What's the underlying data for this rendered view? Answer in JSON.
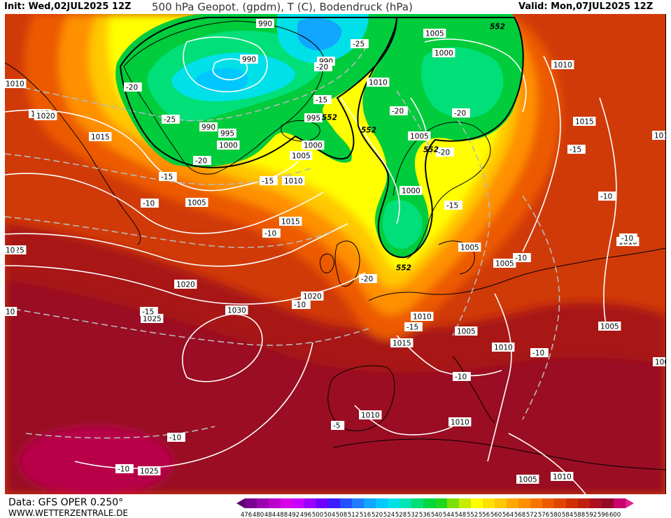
{
  "header": {
    "init_label": "Init: Wed,02JUL2025 12Z",
    "title": "500 hPa Geopot. (gpdm), T (C), Bodendruck (hPa)",
    "valid_label": "Valid: Mon,07JUL2025 12Z"
  },
  "footer": {
    "data_source": "Data: GFS OPER 0.250°",
    "website": "WWW.WETTERZENTRALE.DE"
  },
  "legend": {
    "ticks": [
      "476",
      "480",
      "484",
      "488",
      "492",
      "496",
      "500",
      "504",
      "508",
      "512",
      "516",
      "520",
      "524",
      "528",
      "532",
      "536",
      "540",
      "544",
      "548",
      "552",
      "556",
      "560",
      "564",
      "568",
      "572",
      "576",
      "580",
      "584",
      "588",
      "592",
      "596",
      "600"
    ],
    "colors": [
      "#5a006e",
      "#7a0090",
      "#9b00b0",
      "#bb00cc",
      "#d800e6",
      "#c800ff",
      "#9a00ff",
      "#6e00ff",
      "#3c1cff",
      "#2550ff",
      "#1f7cff",
      "#11a6ff",
      "#00c8ff",
      "#00e0e8",
      "#00e6b4",
      "#00df78",
      "#00d840",
      "#22d61e",
      "#7ee000",
      "#c8ec00",
      "#ffff00",
      "#ffe000",
      "#ffc800",
      "#ffa800",
      "#ff9000",
      "#f87400",
      "#ec5a00",
      "#e04600",
      "#d03000",
      "#c02010",
      "#aa1020",
      "#960828",
      "#c8006e",
      "#e0208c"
    ]
  },
  "map": {
    "isobar_labels": [
      {
        "text": "990"
      },
      {
        "text": "990"
      },
      {
        "text": "990"
      },
      {
        "text": "990"
      },
      {
        "text": "995"
      },
      {
        "text": "995"
      },
      {
        "text": "1000"
      },
      {
        "text": "1000"
      },
      {
        "text": "1000"
      },
      {
        "text": "1000"
      },
      {
        "text": "1005"
      },
      {
        "text": "1005"
      },
      {
        "text": "1005"
      },
      {
        "text": "1005"
      },
      {
        "text": "1005"
      },
      {
        "text": "1005"
      },
      {
        "text": "1005"
      },
      {
        "text": "1005"
      },
      {
        "text": "1005"
      },
      {
        "text": "1005"
      },
      {
        "text": "1010"
      },
      {
        "text": "1010"
      },
      {
        "text": "1010"
      },
      {
        "text": "1010"
      },
      {
        "text": "1010"
      },
      {
        "text": "1010"
      },
      {
        "text": "1010"
      },
      {
        "text": "1010"
      },
      {
        "text": "1010"
      },
      {
        "text": "1010"
      },
      {
        "text": "1010"
      },
      {
        "text": "1015"
      },
      {
        "text": "1015"
      },
      {
        "text": "1015"
      },
      {
        "text": "1015"
      },
      {
        "text": "1015"
      },
      {
        "text": "1020"
      },
      {
        "text": "1020"
      },
      {
        "text": "1020"
      },
      {
        "text": "1025"
      },
      {
        "text": "1025"
      },
      {
        "text": "1025"
      },
      {
        "text": "1030"
      }
    ],
    "temp_labels": [
      {
        "text": "-25"
      },
      {
        "text": "-20"
      },
      {
        "text": "-20"
      },
      {
        "text": "-25"
      },
      {
        "text": "-20"
      },
      {
        "text": "-15"
      },
      {
        "text": "-15"
      },
      {
        "text": "-20"
      },
      {
        "text": "-20"
      },
      {
        "text": "-20"
      },
      {
        "text": "-15"
      },
      {
        "text": "-15"
      },
      {
        "text": "-10"
      },
      {
        "text": "-15"
      },
      {
        "text": "-15"
      },
      {
        "text": "-10"
      },
      {
        "text": "-10"
      },
      {
        "text": "-10"
      },
      {
        "text": "-20"
      },
      {
        "text": "-10"
      },
      {
        "text": "-10"
      },
      {
        "text": "-15"
      },
      {
        "text": "-10"
      },
      {
        "text": "-10"
      },
      {
        "text": "-10"
      },
      {
        "text": "-10"
      },
      {
        "text": "-5"
      },
      {
        "text": "-10"
      },
      {
        "text": "-10"
      },
      {
        "text": "10"
      },
      {
        "text": "10"
      }
    ],
    "geopot_labels": [
      {
        "text": "552"
      },
      {
        "text": "552"
      },
      {
        "text": "552"
      },
      {
        "text": "552"
      },
      {
        "text": "552"
      }
    ]
  }
}
